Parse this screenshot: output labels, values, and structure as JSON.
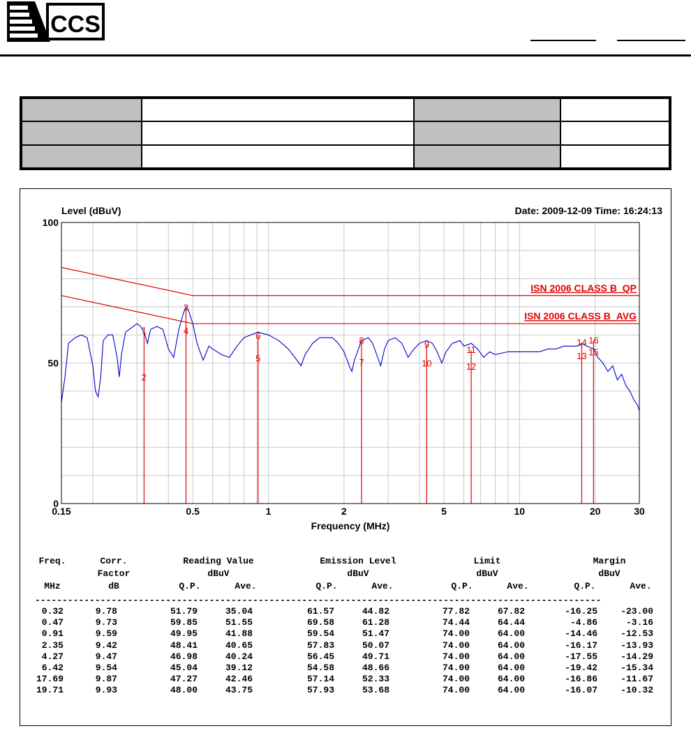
{
  "header": {
    "logo_text": "CCS"
  },
  "info_table": {
    "rows": [
      [
        "",
        "",
        "",
        ""
      ],
      [
        "",
        "",
        "",
        ""
      ],
      [
        "",
        "",
        "",
        ""
      ]
    ]
  },
  "chart_data": {
    "type": "line",
    "ylabel": "Level (dBuV)",
    "xlabel": "Frequency (MHz)",
    "date_time": "Date: 2009-12-09  Time: 16:24:13",
    "x_scale": "log",
    "xlim": [
      0.15,
      30
    ],
    "ylim": [
      0,
      100
    ],
    "x_ticks": [
      0.15,
      0.5,
      1,
      2,
      5,
      10,
      20,
      30
    ],
    "x_tick_labels": [
      "0.15",
      "0.5",
      "1",
      "2",
      "5",
      "10",
      "20",
      "30"
    ],
    "y_tick_labels": [
      "100",
      "50",
      "0"
    ],
    "grid": true,
    "limit_lines": [
      {
        "name": "ISN 2006 CLASS B_QP",
        "points": [
          [
            0.15,
            84
          ],
          [
            0.5,
            74
          ],
          [
            30,
            74
          ]
        ],
        "color": "#e00000"
      },
      {
        "name": "ISN 2006 CLASS B_AVG",
        "points": [
          [
            0.15,
            74
          ],
          [
            0.5,
            64
          ],
          [
            30,
            64
          ]
        ],
        "color": "#e00000"
      }
    ],
    "series": [
      {
        "color": "#0000cc",
        "points": [
          [
            0.15,
            36
          ],
          [
            0.155,
            45
          ],
          [
            0.16,
            57
          ],
          [
            0.17,
            59
          ],
          [
            0.18,
            60
          ],
          [
            0.19,
            59
          ],
          [
            0.2,
            49
          ],
          [
            0.205,
            40
          ],
          [
            0.21,
            38
          ],
          [
            0.215,
            45
          ],
          [
            0.22,
            58
          ],
          [
            0.23,
            60
          ],
          [
            0.24,
            60
          ],
          [
            0.25,
            52
          ],
          [
            0.255,
            45
          ],
          [
            0.26,
            53
          ],
          [
            0.27,
            61
          ],
          [
            0.28,
            62
          ],
          [
            0.29,
            63
          ],
          [
            0.3,
            64
          ],
          [
            0.31,
            63
          ],
          [
            0.32,
            61
          ],
          [
            0.33,
            57
          ],
          [
            0.34,
            62
          ],
          [
            0.36,
            63
          ],
          [
            0.38,
            62
          ],
          [
            0.4,
            55
          ],
          [
            0.42,
            52
          ],
          [
            0.44,
            62
          ],
          [
            0.46,
            68
          ],
          [
            0.47,
            70
          ],
          [
            0.48,
            69
          ],
          [
            0.5,
            64
          ],
          [
            0.52,
            57
          ],
          [
            0.55,
            51
          ],
          [
            0.58,
            56
          ],
          [
            0.6,
            55
          ],
          [
            0.65,
            53
          ],
          [
            0.7,
            52
          ],
          [
            0.75,
            56
          ],
          [
            0.8,
            59
          ],
          [
            0.85,
            60
          ],
          [
            0.91,
            61
          ],
          [
            1.0,
            60
          ],
          [
            1.1,
            58
          ],
          [
            1.2,
            55
          ],
          [
            1.3,
            51
          ],
          [
            1.35,
            49
          ],
          [
            1.4,
            53
          ],
          [
            1.5,
            57
          ],
          [
            1.6,
            59
          ],
          [
            1.8,
            59
          ],
          [
            1.9,
            57
          ],
          [
            2.0,
            54
          ],
          [
            2.1,
            49
          ],
          [
            2.15,
            47
          ],
          [
            2.2,
            51
          ],
          [
            2.35,
            58
          ],
          [
            2.5,
            59
          ],
          [
            2.6,
            57
          ],
          [
            2.7,
            53
          ],
          [
            2.8,
            49
          ],
          [
            2.9,
            55
          ],
          [
            3.0,
            58
          ],
          [
            3.2,
            59
          ],
          [
            3.4,
            57
          ],
          [
            3.6,
            52
          ],
          [
            3.8,
            55
          ],
          [
            4.0,
            57
          ],
          [
            4.27,
            58
          ],
          [
            4.5,
            57
          ],
          [
            4.7,
            54
          ],
          [
            4.9,
            50
          ],
          [
            5.1,
            54
          ],
          [
            5.4,
            57
          ],
          [
            5.8,
            58
          ],
          [
            6.0,
            56
          ],
          [
            6.42,
            57
          ],
          [
            6.8,
            55
          ],
          [
            7.2,
            52
          ],
          [
            7.6,
            54
          ],
          [
            8.0,
            53
          ],
          [
            9.0,
            54
          ],
          [
            10.0,
            54
          ],
          [
            11.0,
            54
          ],
          [
            12.0,
            54
          ],
          [
            13.0,
            55
          ],
          [
            14.0,
            55
          ],
          [
            15.0,
            56
          ],
          [
            16.0,
            56
          ],
          [
            17.0,
            56
          ],
          [
            17.69,
            57
          ],
          [
            18.5,
            56
          ],
          [
            19.71,
            55
          ],
          [
            20.5,
            52
          ],
          [
            21.5,
            50
          ],
          [
            22.5,
            47
          ],
          [
            23.5,
            49
          ],
          [
            24.5,
            44
          ],
          [
            25.5,
            46
          ],
          [
            26.5,
            42
          ],
          [
            27.5,
            40
          ],
          [
            28.5,
            37
          ],
          [
            29.5,
            35
          ],
          [
            30,
            33
          ]
        ]
      }
    ],
    "markers": [
      {
        "label": "1",
        "freq": 0.32,
        "level": 61.57
      },
      {
        "label": "2",
        "freq": 0.32,
        "level": 44.82
      },
      {
        "label": "3",
        "freq": 0.47,
        "level": 69.58
      },
      {
        "label": "4",
        "freq": 0.47,
        "level": 61.28
      },
      {
        "label": "5",
        "freq": 0.91,
        "level": 51.47
      },
      {
        "label": "6",
        "freq": 0.91,
        "level": 59.54
      },
      {
        "label": "7",
        "freq": 2.35,
        "level": 50.07
      },
      {
        "label": "8",
        "freq": 2.35,
        "level": 57.83
      },
      {
        "label": "9",
        "freq": 4.27,
        "level": 56.45
      },
      {
        "label": "10",
        "freq": 4.27,
        "level": 49.71
      },
      {
        "label": "11",
        "freq": 6.42,
        "level": 54.58
      },
      {
        "label": "12",
        "freq": 6.42,
        "level": 48.66
      },
      {
        "label": "13",
        "freq": 17.69,
        "level": 52.33
      },
      {
        "label": "14",
        "freq": 17.69,
        "level": 57.14
      },
      {
        "label": "15",
        "freq": 19.71,
        "level": 53.68
      },
      {
        "label": "16",
        "freq": 19.71,
        "level": 57.93
      }
    ]
  },
  "measurements": {
    "header_line1": [
      "Freq.",
      "Corr.",
      "Reading Value",
      "Emission Level",
      "Limit",
      "Margin"
    ],
    "header_line2": [
      "",
      "Factor",
      "dBuV",
      "dBuV",
      "dBuV",
      "dBuV"
    ],
    "header_line3": [
      "MHz",
      "dB",
      "Q.P.",
      "Ave.",
      "Q.P.",
      "Ave.",
      "Q.P.",
      "Ave.",
      "Q.P.",
      "Ave."
    ],
    "separator": "--------------------------------------------------------------------------------------------------------",
    "rows": [
      [
        "0.32",
        "9.78",
        "51.79",
        "35.04",
        "61.57",
        "44.82",
        "77.82",
        "67.82",
        "-16.25",
        "-23.00"
      ],
      [
        "0.47",
        "9.73",
        "59.85",
        "51.55",
        "69.58",
        "61.28",
        "74.44",
        "64.44",
        "-4.86",
        "-3.16"
      ],
      [
        "0.91",
        "9.59",
        "49.95",
        "41.88",
        "59.54",
        "51.47",
        "74.00",
        "64.00",
        "-14.46",
        "-12.53"
      ],
      [
        "2.35",
        "9.42",
        "48.41",
        "40.65",
        "57.83",
        "50.07",
        "74.00",
        "64.00",
        "-16.17",
        "-13.93"
      ],
      [
        "4.27",
        "9.47",
        "46.98",
        "40.24",
        "56.45",
        "49.71",
        "74.00",
        "64.00",
        "-17.55",
        "-14.29"
      ],
      [
        "6.42",
        "9.54",
        "45.04",
        "39.12",
        "54.58",
        "48.66",
        "74.00",
        "64.00",
        "-19.42",
        "-15.34"
      ],
      [
        "17.69",
        "9.87",
        "47.27",
        "42.46",
        "57.14",
        "52.33",
        "74.00",
        "64.00",
        "-16.86",
        "-11.67"
      ],
      [
        "19.71",
        "9.93",
        "48.00",
        "43.75",
        "57.93",
        "53.68",
        "74.00",
        "64.00",
        "-16.07",
        "-10.32"
      ]
    ]
  }
}
